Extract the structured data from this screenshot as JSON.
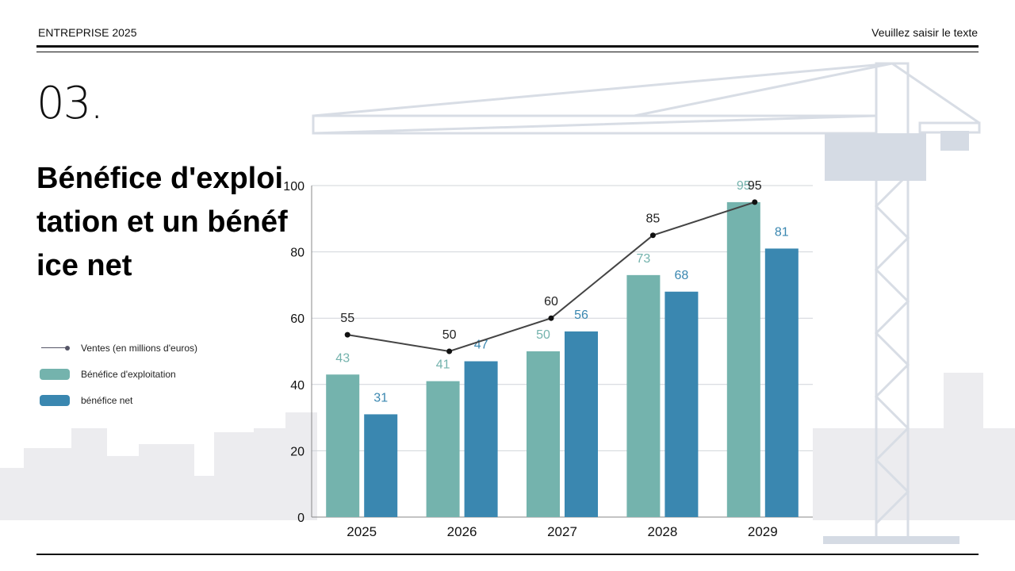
{
  "header": {
    "left": "ENTREPRISE 2025",
    "right": "Veuillez saisir le texte"
  },
  "section_number": "03.",
  "title": "Bénéfice d'exploitation et un bénéfice net",
  "colors": {
    "operating": "#74b3ad",
    "net": "#3a87b0",
    "line": "#444444"
  },
  "chart_data": {
    "type": "bar",
    "categories": [
      "2025",
      "2026",
      "2027",
      "2028",
      "2029"
    ],
    "ylim": [
      0,
      100
    ],
    "yticks": [
      "0",
      "20",
      "40",
      "60",
      "80",
      "100"
    ],
    "grid": true,
    "legend": "left",
    "series": [
      {
        "name": "Ventes (en millions d'euros)",
        "type": "line",
        "values": [
          55,
          50,
          60,
          85,
          95
        ]
      },
      {
        "name": "Bénéfice d'exploitation",
        "type": "bar",
        "values": [
          43,
          41,
          50,
          73,
          95
        ]
      },
      {
        "name": "bénéfice net",
        "type": "bar",
        "values": [
          31,
          47,
          56,
          68,
          81
        ]
      }
    ]
  }
}
